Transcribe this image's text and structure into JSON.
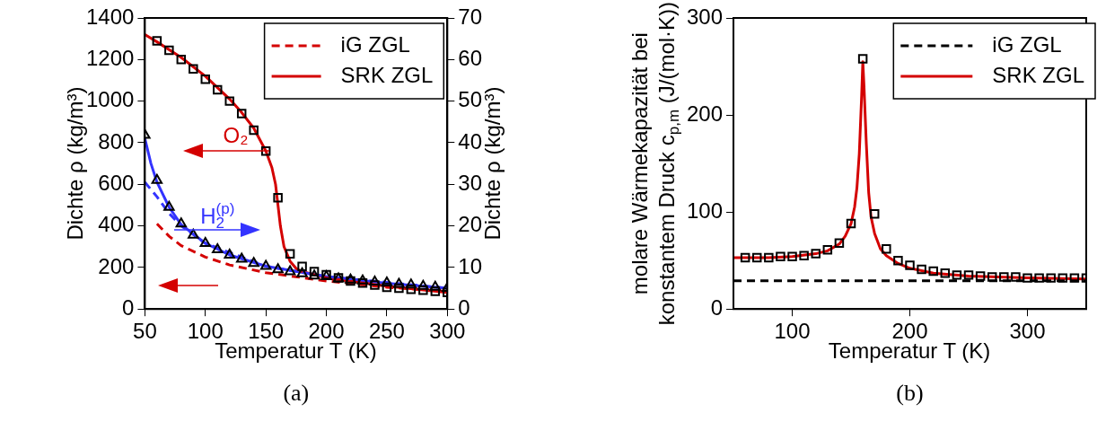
{
  "chart_data": [
    {
      "type": "line",
      "xlabel": "Temperatur T (K)",
      "ylabel": "Dichte ρ (kg/m³)",
      "y2label": "Dichte ρ (kg/m³)",
      "xlim": [
        50,
        300
      ],
      "xticks": [
        50,
        100,
        150,
        200,
        250,
        300
      ],
      "ylim": [
        0,
        1400
      ],
      "yticks": [
        0,
        200,
        400,
        600,
        800,
        1000,
        1200,
        1400
      ],
      "y2lim": [
        0,
        70
      ],
      "y2ticks": [
        0,
        10,
        20,
        30,
        40,
        50,
        60,
        70
      ],
      "grid": false,
      "legend": "top right",
      "annotations": [
        "O₂",
        "H$_{2}$$^{(p)}$",
        "(a)"
      ],
      "series": [
        {
          "type": "scatter",
          "marker": "square",
          "color": "#000000",
          "x": [
            60,
            70,
            80,
            90,
            100,
            110,
            120,
            130,
            140,
            150,
            160,
            170,
            180,
            190,
            200,
            210,
            220,
            230,
            240,
            250,
            260,
            270,
            280,
            290,
            300
          ],
          "values": [
            1290,
            1245,
            1200,
            1155,
            1105,
            1055,
            1000,
            940,
            860,
            760,
            535,
            265,
            205,
            180,
            165,
            150,
            135,
            125,
            115,
            105,
            100,
            95,
            90,
            85,
            80
          ]
        },
        {
          "type": "scatter",
          "marker": "triangle",
          "color": "#000000",
          "axis": "y2",
          "x": [
            50,
            60,
            70,
            80,
            90,
            100,
            110,
            120,
            130,
            140,
            150,
            160,
            170,
            180,
            190,
            200,
            210,
            220,
            230,
            240,
            250,
            260,
            270,
            280,
            290,
            300
          ],
          "values": [
            41.8,
            31,
            24.5,
            20.5,
            17.8,
            15.8,
            14.3,
            13,
            12,
            11,
            10.3,
            9.5,
            9,
            8.5,
            8,
            7.8,
            7.3,
            7,
            6.8,
            6.5,
            6.3,
            6,
            5.8,
            5.5,
            5.3,
            5
          ]
        },
        {
          "type": "line",
          "name": "iG ZGL",
          "line_style": "dashed",
          "color": "#d40000",
          "x": [
            60,
            70,
            80,
            100,
            120,
            150,
            200,
            250,
            300
          ],
          "values": [
            410,
            350,
            305,
            250,
            212,
            175,
            135,
            105,
            85
          ]
        },
        {
          "type": "line",
          "line_style": "dashed",
          "color": "#3333ff",
          "axis": "y2",
          "x": [
            50,
            60,
            70,
            80,
            100,
            150,
            200,
            300
          ],
          "values": [
            30.5,
            27,
            23,
            20,
            15.8,
            10.3,
            7.8,
            5
          ]
        },
        {
          "type": "line",
          "name": "SRK ZGL",
          "line_style": "solid",
          "color": "#d40000",
          "x": [
            50,
            60,
            80,
            100,
            120,
            130,
            140,
            150,
            155,
            158,
            160,
            162,
            165,
            170,
            175,
            180,
            200,
            250,
            300
          ],
          "values": [
            1320,
            1285,
            1210,
            1120,
            1010,
            945,
            870,
            760,
            680,
            600,
            500,
            400,
            300,
            230,
            195,
            180,
            150,
            110,
            80
          ]
        },
        {
          "type": "line",
          "line_style": "solid",
          "color": "#3333ff",
          "axis": "y2",
          "x": [
            50,
            55,
            60,
            70,
            80,
            100,
            120,
            150,
            200,
            250,
            300
          ],
          "values": [
            41,
            35,
            30.5,
            24.5,
            20.3,
            15.8,
            13,
            10.3,
            7.8,
            6.2,
            5
          ]
        }
      ]
    },
    {
      "type": "line",
      "xlabel": "Temperatur T (K)",
      "ylabel": "molare Wärmekapazität bei konstantem Druck c$_{p,m}$ (J/(mol·K))",
      "xlim": [
        50,
        350
      ],
      "xticks": [
        100,
        200,
        300
      ],
      "ylim": [
        0,
        300
      ],
      "yticks": [
        0,
        100,
        200,
        300
      ],
      "grid": false,
      "legend": "top right",
      "annotations": [
        "(b)"
      ],
      "series": [
        {
          "type": "scatter",
          "marker": "square",
          "color": "#000000",
          "x": [
            60,
            70,
            80,
            90,
            100,
            110,
            120,
            130,
            140,
            150,
            160,
            170,
            180,
            190,
            200,
            210,
            220,
            230,
            240,
            250,
            260,
            270,
            280,
            290,
            300,
            310,
            320,
            330,
            340,
            350
          ],
          "values": [
            53,
            53,
            53,
            54,
            54,
            55,
            57,
            61,
            68,
            88,
            258,
            98,
            62,
            50,
            45,
            41,
            39,
            37,
            35,
            35,
            34,
            33,
            33,
            33,
            32,
            32,
            32,
            32,
            32,
            32
          ]
        },
        {
          "type": "line",
          "name": "iG ZGL",
          "line_style": "dashed",
          "color": "#000000",
          "x": [
            50,
            350
          ],
          "values": [
            29,
            29
          ]
        },
        {
          "type": "line",
          "name": "SRK ZGL",
          "line_style": "solid",
          "color": "#d40000",
          "x": [
            50,
            80,
            100,
            120,
            130,
            140,
            145,
            150,
            153,
            155,
            157,
            159,
            160,
            161,
            163,
            165,
            167,
            170,
            175,
            180,
            190,
            200,
            220,
            250,
            300,
            350
          ],
          "values": [
            53,
            53,
            54,
            57,
            60,
            67,
            75,
            88,
            105,
            125,
            160,
            220,
            255,
            230,
            170,
            120,
            95,
            78,
            62,
            55,
            47,
            42,
            37,
            34,
            32,
            31
          ]
        }
      ]
    }
  ]
}
